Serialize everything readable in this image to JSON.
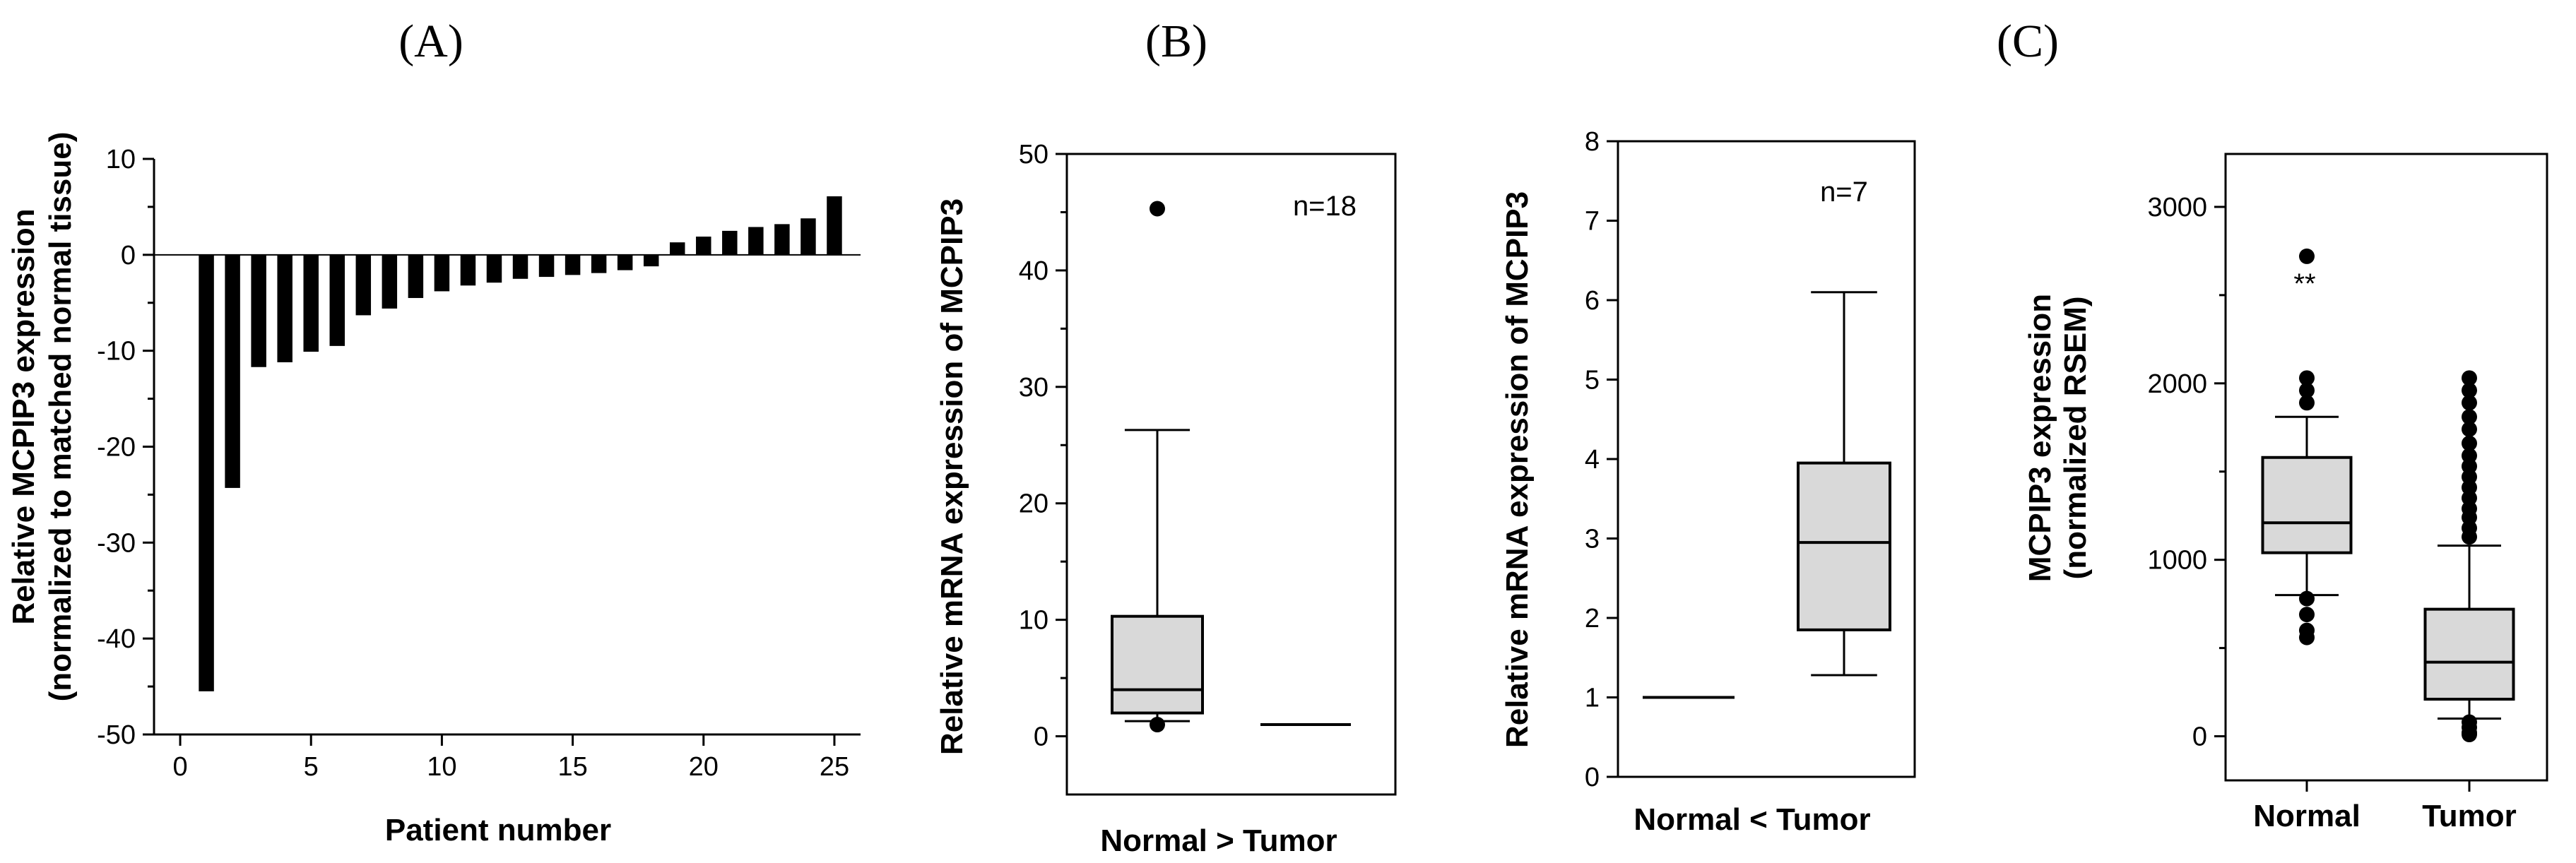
{
  "panel_labels": [
    "(A)",
    "(B)",
    "(C)"
  ],
  "chart_data": [
    {
      "type": "bar",
      "panel": "(A)",
      "title": "",
      "xlabel": "Patient number",
      "ylabel_lines": [
        "Relative MCPIP3 expression",
        "(normalized to matched normal tissue)"
      ],
      "ylim": [
        -50,
        10
      ],
      "xlim": [
        -1,
        26
      ],
      "yticks": [
        10,
        0,
        -10,
        -20,
        -30,
        -40,
        -50
      ],
      "xticks": [
        0,
        5,
        10,
        15,
        20,
        25
      ],
      "x": [
        1,
        2,
        3,
        4,
        5,
        6,
        7,
        8,
        9,
        10,
        11,
        12,
        13,
        14,
        15,
        16,
        17,
        18,
        19,
        20,
        21,
        22,
        23,
        24,
        25
      ],
      "values": [
        -45.5,
        -24.3,
        -11.7,
        -11.2,
        -10.1,
        -9.5,
        -6.3,
        -5.6,
        -4.5,
        -3.8,
        -3.2,
        -2.9,
        -2.5,
        -2.3,
        -2.1,
        -1.9,
        -1.6,
        -1.2,
        1.3,
        1.9,
        2.5,
        2.9,
        3.2,
        3.8,
        6.1
      ],
      "grid": false
    },
    {
      "type": "box",
      "panel": "(B)",
      "title": "",
      "ylabel": "Relative mRNA expression of MCPIP3",
      "xlabel": "Normal  > Tumor",
      "annotation": "n=18",
      "ylim": [
        -5,
        50
      ],
      "yticks": [
        0,
        10,
        20,
        30,
        40,
        50
      ],
      "boxes": [
        {
          "name": "Normal",
          "q1": 2.0,
          "median": 4.0,
          "q3": 10.3,
          "whisker_low": 1.3,
          "whisker_high": 26.3,
          "outliers": [
            45.3,
            1.0
          ]
        },
        {
          "name": "Tumor",
          "median": 1.0
        }
      ]
    },
    {
      "type": "box",
      "panel": "(B)",
      "title": "",
      "ylabel": "Relative mRNA expression of MCPIP3",
      "xlabel": "Normal < Tumor",
      "annotation": "n=7",
      "ylim": [
        0,
        8
      ],
      "yticks": [
        0,
        1,
        2,
        3,
        4,
        5,
        6,
        7,
        8
      ],
      "boxes": [
        {
          "name": "Normal",
          "median": 1.0
        },
        {
          "name": "Tumor",
          "q1": 1.85,
          "median": 2.95,
          "q3": 3.95,
          "whisker_low": 1.28,
          "whisker_high": 6.1,
          "outliers": []
        }
      ]
    },
    {
      "type": "box",
      "panel": "(C)",
      "title": "",
      "ylabel_lines": [
        "MCPIP3 expression",
        "(normalized RSEM)"
      ],
      "categories": [
        "Normal",
        "Tumor"
      ],
      "annotation": "**",
      "ylim": [
        -250,
        3300
      ],
      "yticks": [
        0,
        1000,
        2000,
        3000
      ],
      "boxes": [
        {
          "name": "Normal",
          "q1": 1040,
          "median": 1210,
          "q3": 1580,
          "whisker_low": 800,
          "whisker_high": 1810,
          "outliers": [
            2720,
            2030,
            1960,
            1890,
            780,
            690,
            600,
            560
          ]
        },
        {
          "name": "Tumor",
          "q1": 210,
          "median": 420,
          "q3": 720,
          "whisker_low": 100,
          "whisker_high": 1080,
          "outliers": [
            2030,
            1960,
            1890,
            1810,
            1740,
            1660,
            1590,
            1530,
            1470,
            1410,
            1350,
            1290,
            1240,
            1180,
            1130,
            80,
            50,
            20,
            10
          ]
        }
      ]
    }
  ]
}
